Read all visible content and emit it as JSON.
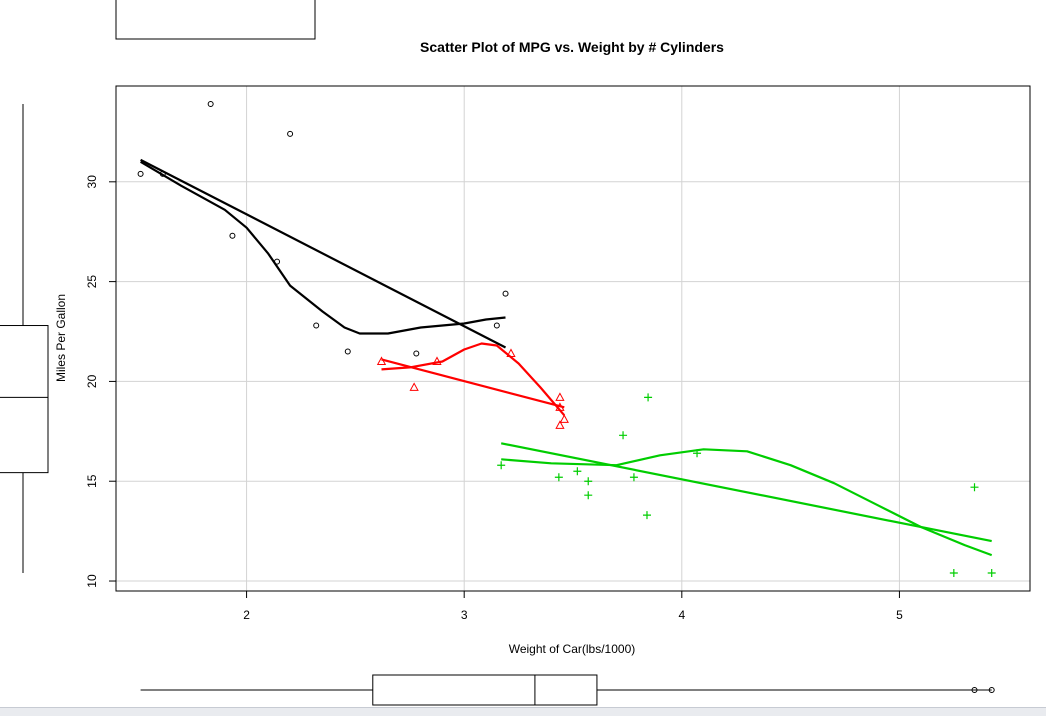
{
  "chart_data": {
    "type": "scatter",
    "title": "Scatter Plot of MPG vs. Weight by # Cylinders",
    "xlabel": "Weight of Car(lbs/1000)",
    "ylabel": "Miles Per Gallon",
    "xlim": [
      1.4,
      5.6
    ],
    "ylim": [
      9.5,
      34.8
    ],
    "x_ticks": [
      2,
      3,
      4,
      5
    ],
    "y_ticks": [
      10,
      15,
      20,
      25,
      30
    ],
    "grid": true,
    "series": [
      {
        "color": "#000000",
        "marker": "circle",
        "points": [
          [
            1.513,
            30.4
          ],
          [
            1.615,
            30.4
          ],
          [
            1.835,
            33.9
          ],
          [
            1.935,
            27.3
          ],
          [
            2.14,
            26.0
          ],
          [
            2.2,
            32.4
          ],
          [
            2.32,
            22.8
          ],
          [
            2.465,
            21.5
          ],
          [
            2.78,
            21.4
          ],
          [
            3.15,
            22.8
          ],
          [
            3.19,
            24.4
          ]
        ],
        "fit_line": [
          [
            1.513,
            31.1
          ],
          [
            3.19,
            21.7
          ]
        ],
        "smooth_line": [
          [
            1.513,
            31.0
          ],
          [
            1.7,
            29.8
          ],
          [
            1.9,
            28.6
          ],
          [
            2.0,
            27.7
          ],
          [
            2.1,
            26.4
          ],
          [
            2.2,
            24.8
          ],
          [
            2.35,
            23.5
          ],
          [
            2.45,
            22.7
          ],
          [
            2.52,
            22.4
          ],
          [
            2.65,
            22.4
          ],
          [
            2.8,
            22.7
          ],
          [
            3.0,
            22.9
          ],
          [
            3.1,
            23.1
          ],
          [
            3.19,
            23.2
          ]
        ]
      },
      {
        "color": "#ff0000",
        "marker": "triangle",
        "points": [
          [
            2.62,
            21.0
          ],
          [
            2.77,
            19.7
          ],
          [
            2.875,
            21.0
          ],
          [
            3.215,
            21.4
          ],
          [
            3.44,
            19.2
          ],
          [
            3.44,
            17.8
          ],
          [
            3.46,
            18.1
          ],
          [
            3.44,
            18.7
          ]
        ],
        "fit_line": [
          [
            2.62,
            21.1
          ],
          [
            3.46,
            18.7
          ]
        ],
        "smooth_line": [
          [
            2.62,
            20.6
          ],
          [
            2.75,
            20.7
          ],
          [
            2.9,
            21.0
          ],
          [
            3.0,
            21.6
          ],
          [
            3.08,
            21.9
          ],
          [
            3.15,
            21.8
          ],
          [
            3.25,
            20.9
          ],
          [
            3.35,
            19.7
          ],
          [
            3.46,
            18.3
          ]
        ]
      },
      {
        "color": "#00cd00",
        "marker": "plus",
        "points": [
          [
            3.17,
            15.8
          ],
          [
            3.435,
            15.2
          ],
          [
            3.52,
            15.5
          ],
          [
            3.57,
            15.0
          ],
          [
            3.57,
            14.3
          ],
          [
            3.73,
            17.3
          ],
          [
            3.78,
            15.2
          ],
          [
            3.84,
            13.3
          ],
          [
            3.845,
            19.2
          ],
          [
            4.07,
            16.4
          ],
          [
            5.25,
            10.4
          ],
          [
            5.345,
            14.7
          ],
          [
            5.424,
            10.4
          ]
        ],
        "fit_line": [
          [
            3.17,
            16.9
          ],
          [
            5.424,
            12.0
          ]
        ],
        "smooth_line": [
          [
            3.17,
            16.1
          ],
          [
            3.4,
            15.9
          ],
          [
            3.7,
            15.8
          ],
          [
            3.9,
            16.3
          ],
          [
            4.1,
            16.6
          ],
          [
            4.3,
            16.5
          ],
          [
            4.5,
            15.8
          ],
          [
            4.7,
            14.9
          ],
          [
            4.9,
            13.8
          ],
          [
            5.1,
            12.7
          ],
          [
            5.3,
            11.8
          ],
          [
            5.424,
            11.3
          ]
        ]
      }
    ],
    "boxplot_x": {
      "whisker": [
        1.513,
        5.424
      ],
      "q1": [
        2.58,
        3.61
      ],
      "median": 3.325,
      "outliers": [
        5.345,
        5.424
      ]
    },
    "boxplot_y": {
      "whisker": [
        10.4,
        33.9
      ],
      "q1": [
        15.43,
        22.8
      ],
      "median": 19.2
    }
  }
}
